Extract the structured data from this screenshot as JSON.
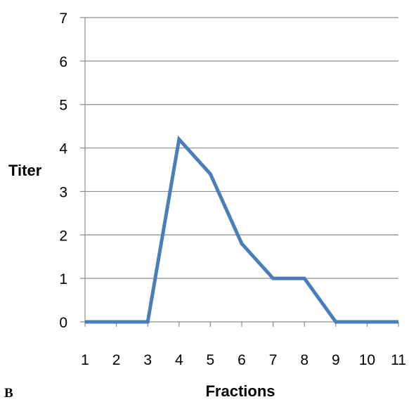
{
  "chart_data": {
    "type": "line",
    "panel_label": "B",
    "xlabel": "Fractions",
    "ylabel": "Titer",
    "x": [
      1,
      2,
      3,
      4,
      5,
      6,
      7,
      8,
      9,
      10,
      11
    ],
    "x_tick_labels": [
      "1",
      "2",
      "3",
      "4",
      "5",
      "6",
      "7",
      "8",
      "9",
      "10",
      "11"
    ],
    "y_tick_labels": [
      "0",
      "1",
      "2",
      "3",
      "4",
      "5",
      "6",
      "7"
    ],
    "xlim": [
      1,
      11
    ],
    "ylim": [
      0,
      7
    ],
    "grid": "horizontal",
    "series": [
      {
        "color": "#4a7ebb",
        "values": [
          0,
          0,
          0,
          4.2,
          3.4,
          1.8,
          1.0,
          1.0,
          0,
          0,
          0
        ]
      }
    ]
  }
}
